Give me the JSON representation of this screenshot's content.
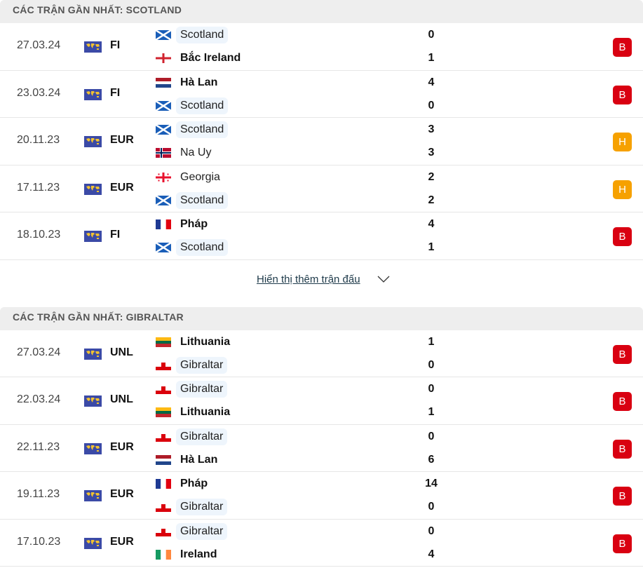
{
  "colors": {
    "loss": "#d90011",
    "draw": "#f6a100",
    "highlight_bg": "#eef5fc"
  },
  "sections": [
    {
      "title": "CÁC TRẬN GẦN NHẤT: SCOTLAND",
      "show_more": "Hiển thị thêm trận đấu",
      "matches": [
        {
          "date": "27.03.24",
          "comp": "FI",
          "home": {
            "name": "Scotland",
            "flag": "scotland",
            "hl": true,
            "win": false
          },
          "away": {
            "name": "Bắc Ireland",
            "flag": "northern-ireland",
            "hl": false,
            "win": true
          },
          "hs": "0",
          "as": "1",
          "result": "B",
          "rtype": "loss"
        },
        {
          "date": "23.03.24",
          "comp": "FI",
          "home": {
            "name": "Hà Lan",
            "flag": "netherlands",
            "hl": false,
            "win": true
          },
          "away": {
            "name": "Scotland",
            "flag": "scotland",
            "hl": true,
            "win": false
          },
          "hs": "4",
          "as": "0",
          "result": "B",
          "rtype": "loss"
        },
        {
          "date": "20.11.23",
          "comp": "EUR",
          "home": {
            "name": "Scotland",
            "flag": "scotland",
            "hl": true,
            "win": false
          },
          "away": {
            "name": "Na Uy",
            "flag": "norway",
            "hl": false,
            "win": false
          },
          "hs": "3",
          "as": "3",
          "result": "H",
          "rtype": "draw"
        },
        {
          "date": "17.11.23",
          "comp": "EUR",
          "home": {
            "name": "Georgia",
            "flag": "georgia",
            "hl": false,
            "win": false
          },
          "away": {
            "name": "Scotland",
            "flag": "scotland",
            "hl": true,
            "win": false
          },
          "hs": "2",
          "as": "2",
          "result": "H",
          "rtype": "draw"
        },
        {
          "date": "18.10.23",
          "comp": "FI",
          "home": {
            "name": "Pháp",
            "flag": "france",
            "hl": false,
            "win": true
          },
          "away": {
            "name": "Scotland",
            "flag": "scotland",
            "hl": true,
            "win": false
          },
          "hs": "4",
          "as": "1",
          "result": "B",
          "rtype": "loss"
        }
      ]
    },
    {
      "title": "CÁC TRẬN GẦN NHẤT: GIBRALTAR",
      "matches": [
        {
          "date": "27.03.24",
          "comp": "UNL",
          "home": {
            "name": "Lithuania",
            "flag": "lithuania",
            "hl": false,
            "win": true
          },
          "away": {
            "name": "Gibraltar",
            "flag": "gibraltar",
            "hl": true,
            "win": false
          },
          "hs": "1",
          "as": "0",
          "result": "B",
          "rtype": "loss"
        },
        {
          "date": "22.03.24",
          "comp": "UNL",
          "home": {
            "name": "Gibraltar",
            "flag": "gibraltar",
            "hl": true,
            "win": false
          },
          "away": {
            "name": "Lithuania",
            "flag": "lithuania",
            "hl": false,
            "win": true
          },
          "hs": "0",
          "as": "1",
          "result": "B",
          "rtype": "loss"
        },
        {
          "date": "22.11.23",
          "comp": "EUR",
          "home": {
            "name": "Gibraltar",
            "flag": "gibraltar",
            "hl": true,
            "win": false
          },
          "away": {
            "name": "Hà Lan",
            "flag": "netherlands",
            "hl": false,
            "win": true
          },
          "hs": "0",
          "as": "6",
          "result": "B",
          "rtype": "loss"
        },
        {
          "date": "19.11.23",
          "comp": "EUR",
          "home": {
            "name": "Pháp",
            "flag": "france",
            "hl": false,
            "win": true
          },
          "away": {
            "name": "Gibraltar",
            "flag": "gibraltar",
            "hl": true,
            "win": false
          },
          "hs": "14",
          "as": "0",
          "result": "B",
          "rtype": "loss"
        },
        {
          "date": "17.10.23",
          "comp": "EUR",
          "home": {
            "name": "Gibraltar",
            "flag": "gibraltar",
            "hl": true,
            "win": false
          },
          "away": {
            "name": "Ireland",
            "flag": "ireland",
            "hl": false,
            "win": true
          },
          "hs": "0",
          "as": "4",
          "result": "B",
          "rtype": "loss"
        }
      ]
    }
  ]
}
